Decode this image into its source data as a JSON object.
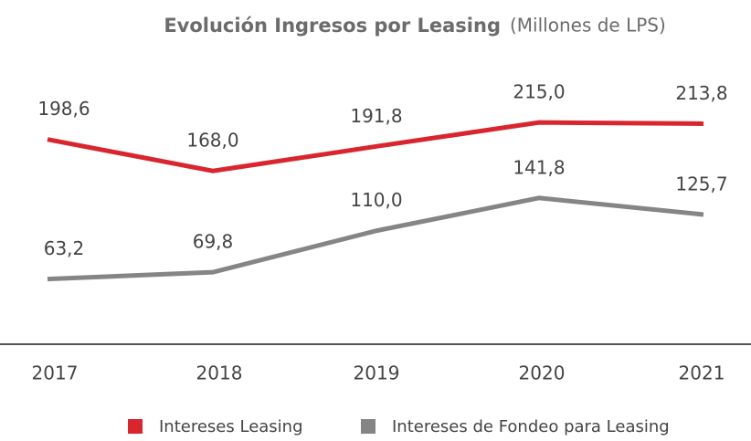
{
  "chart_data": {
    "type": "line",
    "title": "Evolución Ingresos por Leasing",
    "subtitle": "(Millones de LPS)",
    "x": [
      "2017",
      "2018",
      "2019",
      "2020",
      "2021"
    ],
    "series": [
      {
        "name": "Intereses Leasing",
        "color": "#d9262e",
        "values": [
          198.6,
          168.0,
          191.8,
          215.0,
          213.8
        ],
        "value_labels": [
          "198,6",
          "168,0",
          "191,8",
          "215,0",
          "213,8"
        ]
      },
      {
        "name": "Intereses de Fondeo para Leasing",
        "color": "#858585",
        "values": [
          63.2,
          69.8,
          110.0,
          141.8,
          125.7
        ],
        "value_labels": [
          "63,2",
          "69,8",
          "110,0",
          "141,8",
          "125,7"
        ]
      }
    ],
    "ylim": [
      0,
      270
    ],
    "legend": "bottom"
  }
}
